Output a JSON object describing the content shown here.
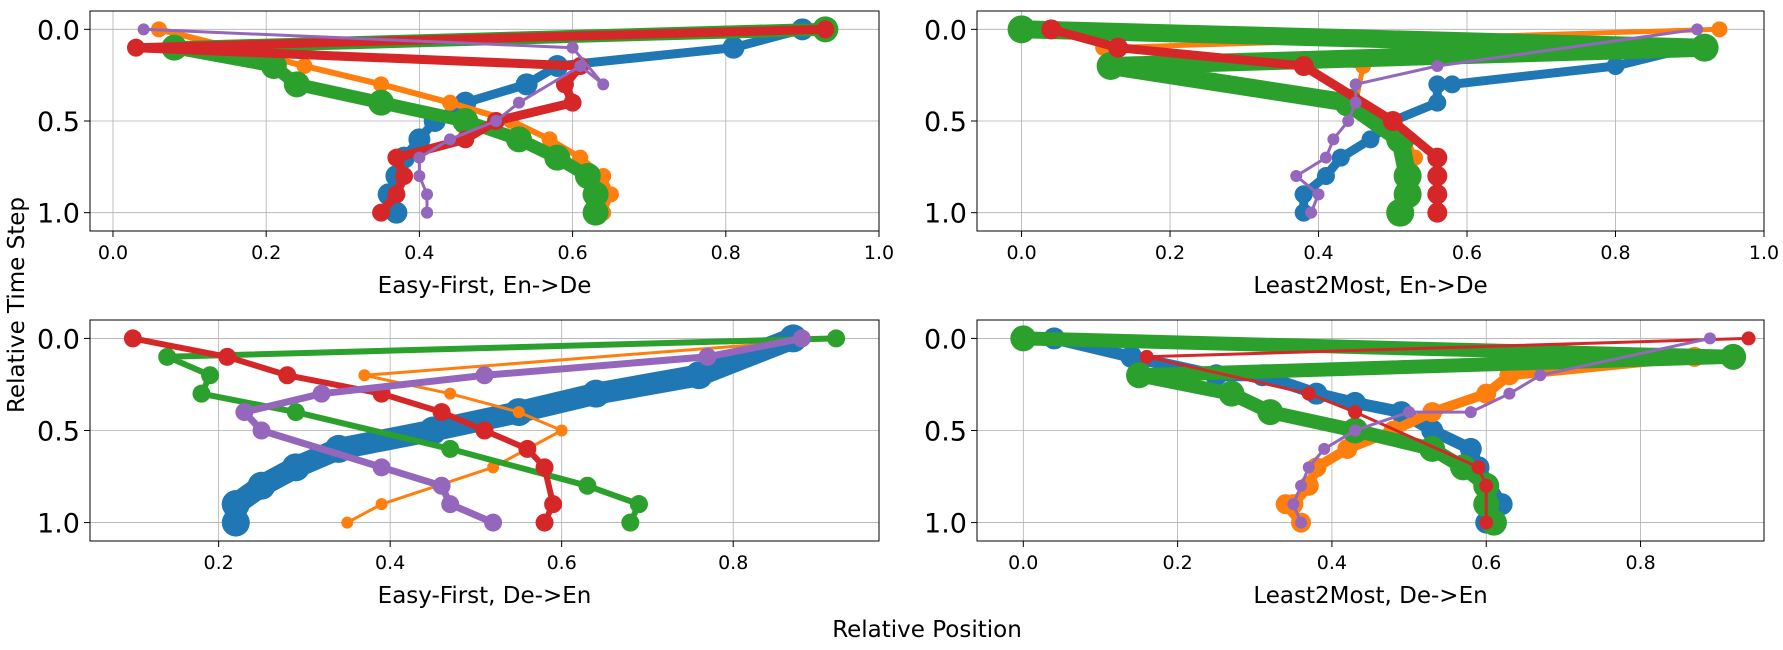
{
  "figure": {
    "supxlabel": "Relative Position",
    "supylabel": "Relative Time Step"
  },
  "chart_data": [
    {
      "type": "line",
      "xlabel": "Easy-First, En->De",
      "ylabel": "",
      "xlim": [
        -0.03,
        1.0
      ],
      "ylim": [
        1.1,
        -0.1
      ],
      "y_inverted": true,
      "xticks": [
        "0.0",
        "0.2",
        "0.4",
        "0.6",
        "0.8",
        "1.0"
      ],
      "yticks": [
        "0.0",
        "0.5",
        "1.0"
      ],
      "grid": true,
      "series": [
        {
          "color": "#1f77b4",
          "x": [
            0.93,
            0.9,
            0.81,
            0.58,
            0.54,
            0.46,
            0.42,
            0.4,
            0.38,
            0.37,
            0.36,
            0.36,
            0.37
          ],
          "y": [
            0.0,
            0.0,
            0.1,
            0.2,
            0.3,
            0.4,
            0.5,
            0.6,
            0.7,
            0.8,
            0.9,
            0.9,
            1.0
          ]
        },
        {
          "color": "#ff7f0e",
          "x": [
            0.06,
            0.25,
            0.35,
            0.44,
            0.52,
            0.57,
            0.61,
            0.64,
            0.65,
            0.64
          ],
          "y": [
            0.0,
            0.2,
            0.3,
            0.4,
            0.5,
            0.6,
            0.7,
            0.8,
            0.9,
            1.0
          ]
        },
        {
          "color": "#2ca02c",
          "x": [
            0.93,
            0.08,
            0.21,
            0.24,
            0.35,
            0.46,
            0.53,
            0.58,
            0.62,
            0.63,
            0.63
          ],
          "y": [
            0.0,
            0.1,
            0.2,
            0.3,
            0.4,
            0.5,
            0.6,
            0.7,
            0.8,
            0.9,
            1.0
          ]
        },
        {
          "color": "#d62728",
          "x": [
            0.93,
            0.03,
            0.61,
            0.59,
            0.6,
            0.5,
            0.46,
            0.37,
            0.38,
            0.37,
            0.35
          ],
          "y": [
            0.0,
            0.1,
            0.2,
            0.3,
            0.4,
            0.5,
            0.6,
            0.7,
            0.8,
            0.9,
            1.0
          ]
        },
        {
          "color": "#9467bd",
          "x": [
            0.04,
            0.6,
            0.64,
            0.61,
            0.53,
            0.5,
            0.44,
            0.4,
            0.4,
            0.41,
            0.41,
            0.41
          ],
          "y": [
            0.0,
            0.1,
            0.3,
            0.2,
            0.4,
            0.5,
            0.6,
            0.7,
            0.8,
            0.9,
            1.0,
            1.0
          ]
        }
      ]
    },
    {
      "type": "line",
      "xlabel": "Least2Most, En->De",
      "ylabel": "",
      "xlim": [
        -0.06,
        1.0
      ],
      "ylim": [
        1.1,
        -0.1
      ],
      "y_inverted": true,
      "xticks": [
        "0.0",
        "0.2",
        "0.4",
        "0.6",
        "0.8",
        "1.0"
      ],
      "yticks": [
        "0.0",
        "0.5",
        "1.0"
      ],
      "grid": true,
      "series": [
        {
          "color": "#1f77b4",
          "x": [
            0.9,
            0.8,
            0.58,
            0.56,
            0.56,
            0.5,
            0.47,
            0.43,
            0.41,
            0.38,
            0.38,
            0.38
          ],
          "y": [
            0.1,
            0.2,
            0.3,
            0.3,
            0.4,
            0.5,
            0.6,
            0.7,
            0.8,
            0.9,
            0.9,
            1.0
          ]
        },
        {
          "color": "#ff7f0e",
          "x": [
            0.94,
            0.11,
            0.46,
            0.45,
            0.49,
            0.52,
            0.53
          ],
          "y": [
            0.0,
            0.1,
            0.2,
            0.4,
            0.5,
            0.6,
            0.7
          ]
        },
        {
          "color": "#2ca02c",
          "x": [
            0.0,
            0.92,
            0.12,
            0.44,
            0.51,
            0.52,
            0.52,
            0.51
          ],
          "y": [
            0.0,
            0.1,
            0.2,
            0.4,
            0.6,
            0.8,
            0.9,
            1.0
          ]
        },
        {
          "color": "#d62728",
          "x": [
            0.04,
            0.13,
            0.38,
            0.5,
            0.56,
            0.56,
            0.56,
            0.56
          ],
          "y": [
            0.0,
            0.1,
            0.2,
            0.5,
            0.7,
            0.8,
            0.9,
            1.0
          ]
        },
        {
          "color": "#9467bd",
          "x": [
            0.91,
            0.56,
            0.45,
            0.45,
            0.44,
            0.42,
            0.41,
            0.37,
            0.4,
            0.39
          ],
          "y": [
            0.0,
            0.2,
            0.3,
            0.4,
            0.5,
            0.6,
            0.7,
            0.8,
            0.9,
            1.0
          ]
        }
      ]
    },
    {
      "type": "line",
      "xlabel": "Easy-First, De->En",
      "ylabel": "",
      "xlim": [
        0.05,
        0.97
      ],
      "ylim": [
        1.1,
        -0.1
      ],
      "y_inverted": true,
      "xticks": [
        "0.2",
        "0.4",
        "0.6",
        "0.8"
      ],
      "xtick_values": [
        0.2,
        0.4,
        0.6,
        0.8
      ],
      "yticks": [
        "0.0",
        "0.5",
        "1.0"
      ],
      "grid": true,
      "series": [
        {
          "color": "#1f77b4",
          "x": [
            0.87,
            0.76,
            0.64,
            0.55,
            0.45,
            0.34,
            0.29,
            0.25,
            0.22,
            0.22,
            0.22
          ],
          "y": [
            0.0,
            0.2,
            0.3,
            0.4,
            0.5,
            0.6,
            0.7,
            0.8,
            0.9,
            0.9,
            1.0
          ]
        },
        {
          "color": "#ff7f0e",
          "x": [
            0.92,
            0.37,
            0.47,
            0.55,
            0.6,
            0.52,
            0.39,
            0.35
          ],
          "y": [
            0.0,
            0.2,
            0.3,
            0.4,
            0.5,
            0.7,
            0.9,
            1.0
          ]
        },
        {
          "color": "#2ca02c",
          "x": [
            0.92,
            0.14,
            0.19,
            0.18,
            0.29,
            0.47,
            0.63,
            0.69,
            0.69,
            0.68
          ],
          "y": [
            0.0,
            0.1,
            0.2,
            0.3,
            0.4,
            0.6,
            0.8,
            0.9,
            0.9,
            1.0
          ]
        },
        {
          "color": "#d62728",
          "x": [
            0.1,
            0.21,
            0.28,
            0.39,
            0.46,
            0.51,
            0.56,
            0.58,
            0.59,
            0.58
          ],
          "y": [
            0.0,
            0.1,
            0.2,
            0.3,
            0.4,
            0.5,
            0.6,
            0.7,
            0.9,
            1.0
          ]
        },
        {
          "color": "#9467bd",
          "x": [
            0.88,
            0.77,
            0.51,
            0.32,
            0.23,
            0.25,
            0.39,
            0.46,
            0.47,
            0.52
          ],
          "y": [
            0.0,
            0.1,
            0.2,
            0.3,
            0.4,
            0.5,
            0.7,
            0.8,
            0.9,
            1.0
          ]
        }
      ]
    },
    {
      "type": "line",
      "xlabel": "Least2Most, De->En",
      "ylabel": "",
      "xlim": [
        -0.06,
        0.96
      ],
      "ylim": [
        1.1,
        -0.1
      ],
      "y_inverted": true,
      "xticks": [
        "0.0",
        "0.2",
        "0.4",
        "0.6",
        "0.8"
      ],
      "xtick_values": [
        0.0,
        0.2,
        0.4,
        0.6,
        0.8
      ],
      "yticks": [
        "0.0",
        "0.5",
        "1.0"
      ],
      "grid": true,
      "series": [
        {
          "color": "#1f77b4",
          "x": [
            0.04,
            0.14,
            0.25,
            0.31,
            0.38,
            0.43,
            0.49,
            0.53,
            0.58,
            0.59,
            0.62,
            0.6
          ],
          "y": [
            0.0,
            0.1,
            0.2,
            0.2,
            0.3,
            0.35,
            0.4,
            0.5,
            0.6,
            0.7,
            0.9,
            1.0
          ]
        },
        {
          "color": "#ff7f0e",
          "x": [
            0.87,
            0.63,
            0.6,
            0.53,
            0.48,
            0.42,
            0.38,
            0.37,
            0.35,
            0.34,
            0.36
          ],
          "y": [
            0.1,
            0.2,
            0.3,
            0.4,
            0.5,
            0.6,
            0.7,
            0.8,
            0.9,
            0.9,
            1.0
          ]
        },
        {
          "color": "#2ca02c",
          "x": [
            0.0,
            0.92,
            0.15,
            0.27,
            0.32,
            0.43,
            0.53,
            0.57,
            0.6,
            0.6,
            0.61
          ],
          "y": [
            0.0,
            0.1,
            0.2,
            0.3,
            0.4,
            0.5,
            0.6,
            0.7,
            0.8,
            0.9,
            1.0
          ]
        },
        {
          "color": "#d62728",
          "x": [
            0.94,
            0.16,
            0.37,
            0.43,
            0.59,
            0.6,
            0.6
          ],
          "y": [
            0.0,
            0.1,
            0.3,
            0.4,
            0.7,
            0.8,
            1.0
          ]
        },
        {
          "color": "#9467bd",
          "x": [
            0.89,
            0.67,
            0.63,
            0.58,
            0.5,
            0.43,
            0.39,
            0.37,
            0.36,
            0.35,
            0.36
          ],
          "y": [
            0.0,
            0.2,
            0.3,
            0.4,
            0.4,
            0.5,
            0.6,
            0.7,
            0.8,
            0.9,
            1.0
          ]
        }
      ]
    }
  ]
}
